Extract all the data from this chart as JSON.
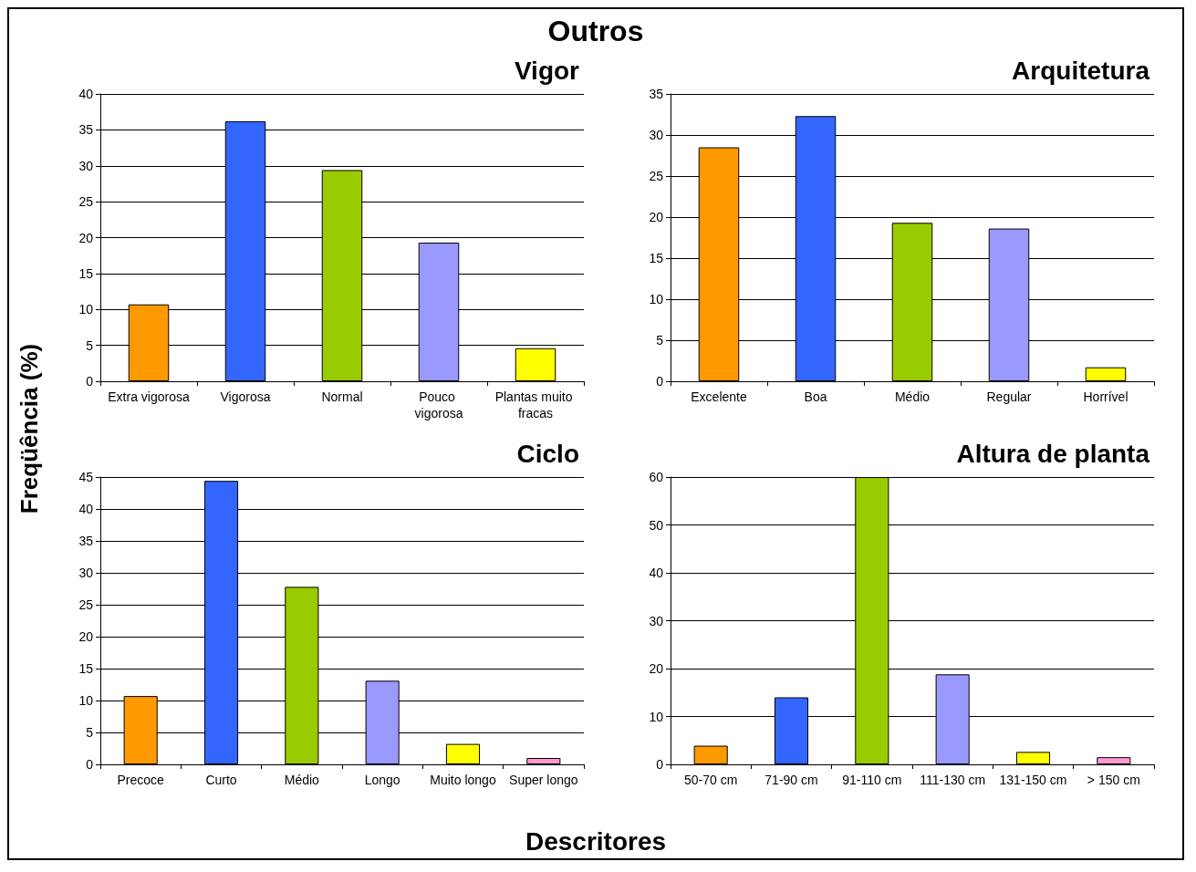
{
  "chart_data": [
    {
      "type": "bar",
      "title": "Vigor",
      "ylabel": "Freqüência (%)",
      "xlabel": "Descritores",
      "annotations": [
        "Outros"
      ],
      "categories": [
        "Extra vigorosa",
        "Vigorosa",
        "Normal",
        "Pouco vigorosa",
        "Plantas muito fracas"
      ],
      "values": [
        10.7,
        36.2,
        29.4,
        19.3,
        4.6
      ],
      "colors": [
        "#ff9900",
        "#3366ff",
        "#99cc00",
        "#9999ff",
        "#ffff00"
      ],
      "ylim": [
        0,
        40
      ],
      "yticks": [
        0,
        5,
        10,
        15,
        20,
        25,
        30,
        35,
        40
      ],
      "grid": "y"
    },
    {
      "type": "bar",
      "title": "Arquitetura",
      "categories": [
        "Excelente",
        "Boa",
        "Médio",
        "Regular",
        "Horrível"
      ],
      "values": [
        28.5,
        32.3,
        19.3,
        18.6,
        1.7
      ],
      "colors": [
        "#ff9900",
        "#3366ff",
        "#99cc00",
        "#9999ff",
        "#ffff00"
      ],
      "ylim": [
        0,
        35
      ],
      "yticks": [
        0,
        5,
        10,
        15,
        20,
        25,
        30,
        35
      ],
      "grid": "y"
    },
    {
      "type": "bar",
      "title": "Ciclo",
      "categories": [
        "Precoce",
        "Curto",
        "Médio",
        "Longo",
        "Muito longo",
        "Super longo"
      ],
      "values": [
        10.7,
        44.4,
        27.8,
        13.1,
        3.2,
        1
      ],
      "colors": [
        "#ff9900",
        "#3366ff",
        "#99cc00",
        "#9999ff",
        "#ffff00",
        "#ff99cc"
      ],
      "ylim": [
        0,
        45
      ],
      "yticks": [
        0,
        5,
        10,
        15,
        20,
        25,
        30,
        35,
        40,
        45
      ],
      "grid": "y"
    },
    {
      "type": "bar",
      "title": "Altura de planta",
      "categories": [
        "50-70 cm",
        "71-90 cm",
        "91-110 cm",
        "111-130 cm",
        "131-150 cm",
        "> 150 cm"
      ],
      "values": [
        3.9,
        14,
        60,
        18.8,
        2.6,
        1.5
      ],
      "colors": [
        "#ff9900",
        "#3366ff",
        "#99cc00",
        "#9999ff",
        "#ffff00",
        "#ff99cc"
      ],
      "ylim": [
        0,
        60
      ],
      "yticks": [
        0,
        10,
        20,
        30,
        40,
        50,
        60
      ],
      "grid": "y"
    }
  ]
}
